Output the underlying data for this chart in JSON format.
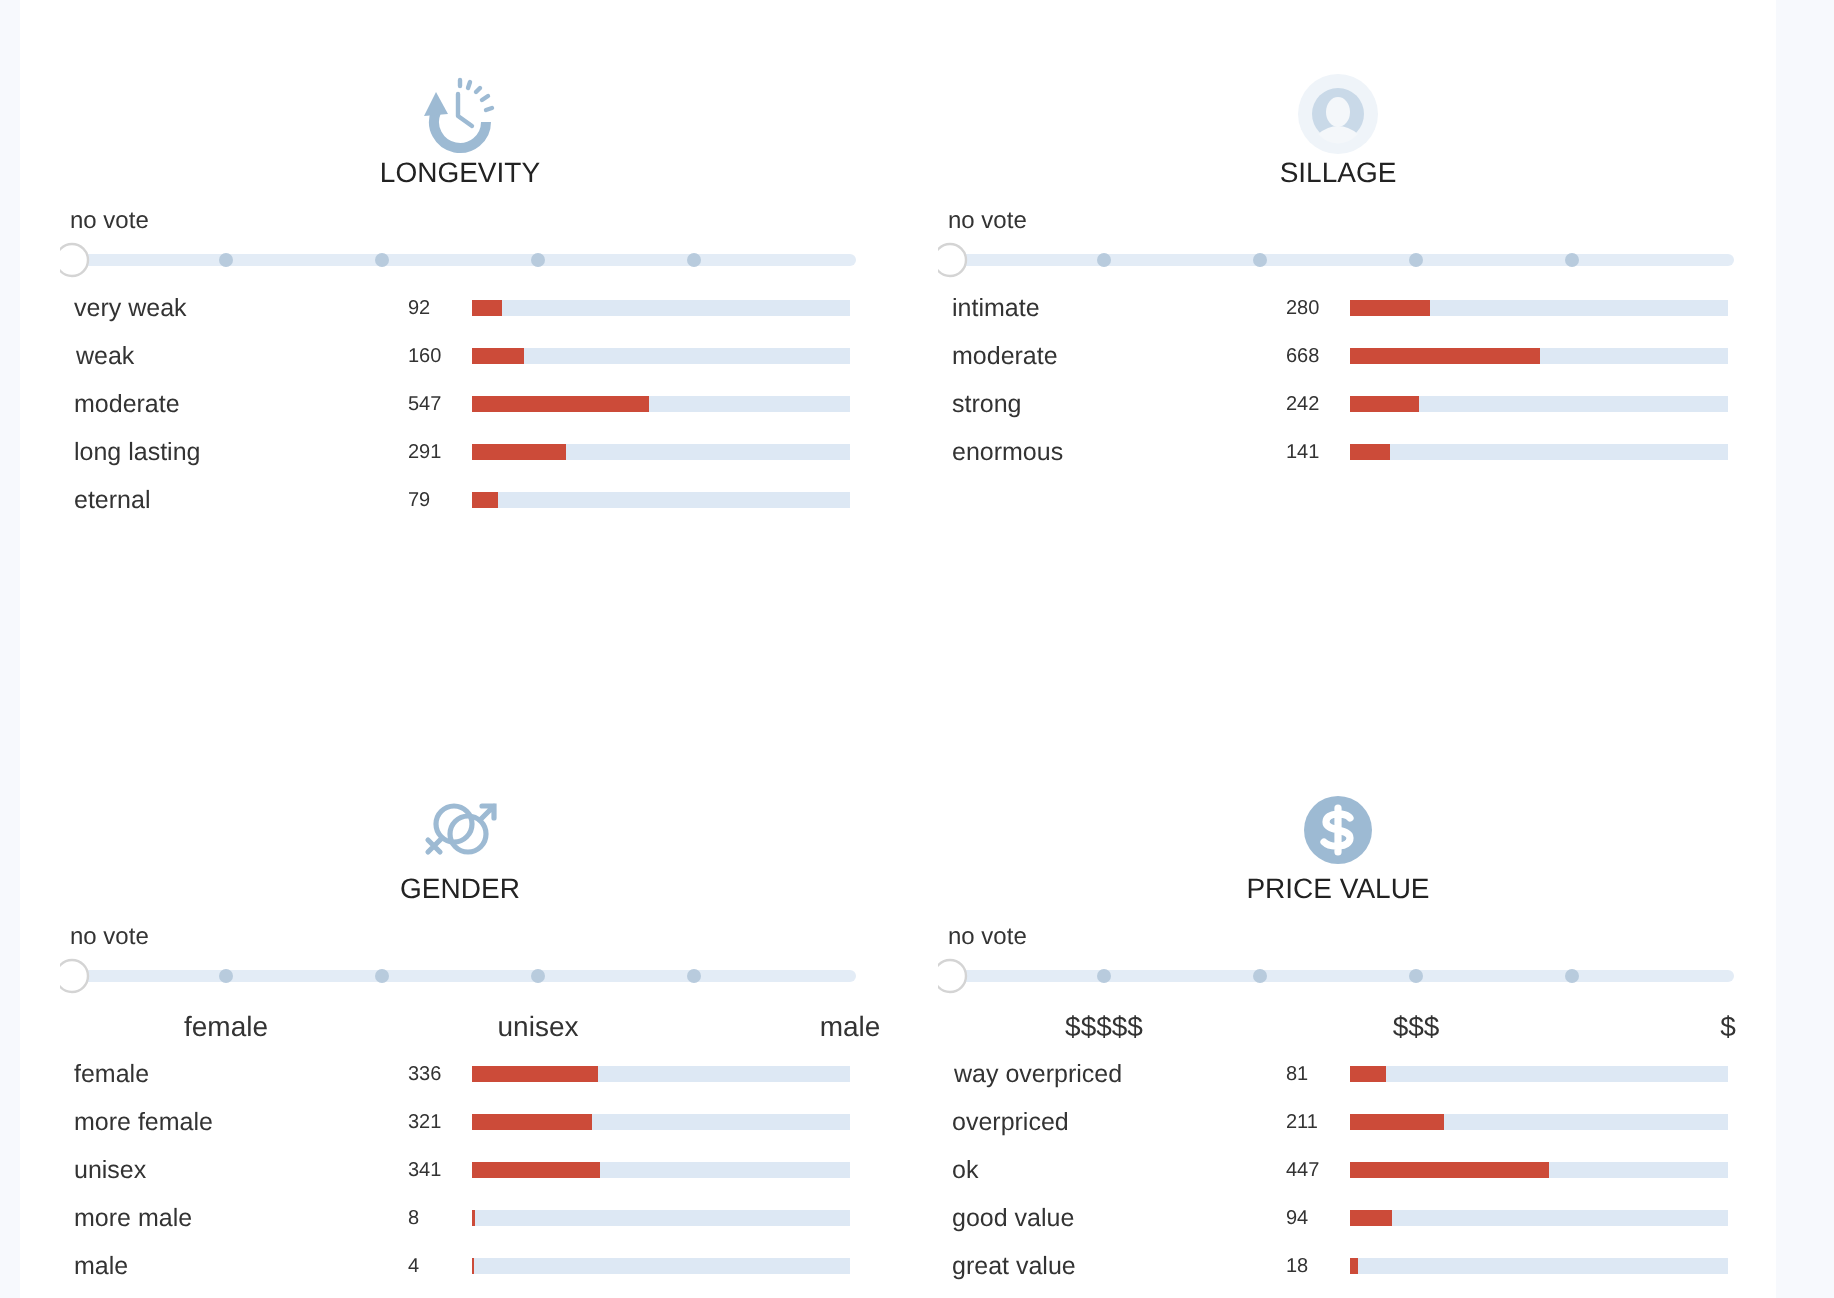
{
  "chart_data": [
    {
      "type": "bar",
      "orientation": "horizontal",
      "title": "LONGEVITY",
      "subtitle": "no vote",
      "categories": [
        "very weak",
        "weak",
        "moderate",
        "long lasting",
        "eternal"
      ],
      "values": [
        92,
        160,
        547,
        291,
        79
      ],
      "color": "#cc4b39",
      "data_labels": true,
      "grid": "y",
      "tick_labels": "y"
    },
    {
      "type": "bar",
      "orientation": "horizontal",
      "title": "SILLAGE",
      "subtitle": "no vote",
      "categories": [
        "intimate",
        "moderate",
        "strong",
        "enormous"
      ],
      "values": [
        280,
        668,
        242,
        141
      ],
      "color": "#cc4b39",
      "data_labels": true,
      "grid": "y",
      "tick_labels": "y"
    },
    {
      "type": "bar",
      "orientation": "horizontal",
      "title": "GENDER",
      "subtitle": "no vote",
      "annotations": [
        "female",
        "unisex",
        "male"
      ],
      "categories": [
        "female",
        "more female",
        "unisex",
        "more male",
        "male"
      ],
      "values": [
        336,
        321,
        341,
        8,
        4
      ],
      "color": "#cc4b39",
      "data_labels": true,
      "grid": "y",
      "tick_labels": "y"
    },
    {
      "type": "bar",
      "orientation": "horizontal",
      "title": "PRICE VALUE",
      "subtitle": "no vote",
      "annotations": [
        "$$$$$",
        "$$$",
        "$"
      ],
      "categories": [
        "way overpriced",
        "overpriced",
        "ok",
        "good value",
        "great value"
      ],
      "values": [
        81,
        211,
        447,
        94,
        18
      ],
      "color": "#cc4b39",
      "data_labels": true,
      "grid": "y",
      "tick_labels": "y"
    }
  ]
}
